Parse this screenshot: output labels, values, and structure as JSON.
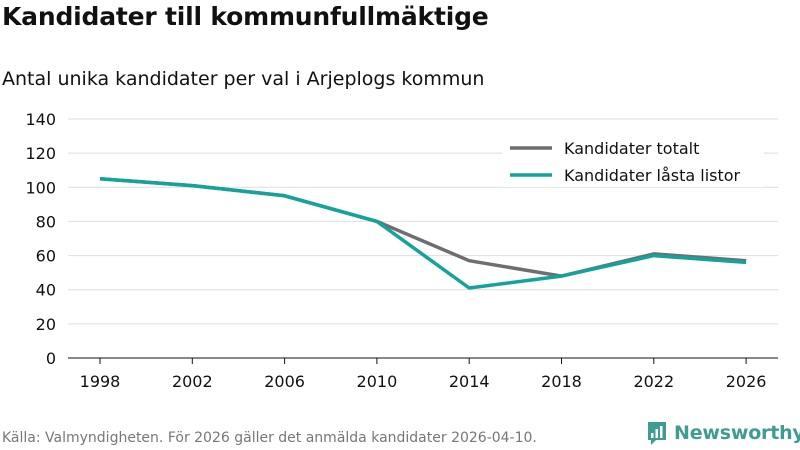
{
  "chart_data": {
    "type": "line",
    "title": "Kandidater till kommunfullmäktige",
    "subtitle": "Antal unika kandidater per val i Arjeplogs kommun",
    "categories": [
      "1998",
      "2002",
      "2006",
      "2010",
      "2014",
      "2018",
      "2022",
      "2026"
    ],
    "series": [
      {
        "name": "Kandidater totalt",
        "color": "#6e6d72",
        "values": [
          105,
          101,
          95,
          80,
          57,
          48,
          61,
          57
        ]
      },
      {
        "name": "Kandidater låsta listor",
        "color": "#12a39a",
        "values": [
          105,
          101,
          95,
          80,
          41,
          48,
          60,
          56
        ]
      }
    ],
    "yticks": [
      0,
      20,
      40,
      60,
      80,
      100,
      120,
      140
    ],
    "ylim": [
      0,
      140
    ],
    "grid": true,
    "legend": "top-right",
    "source": "Källa: Valmyndigheten. För 2026 gäller det anmälda kandidater 2026-04-10.",
    "brand": "Newsworthy"
  }
}
